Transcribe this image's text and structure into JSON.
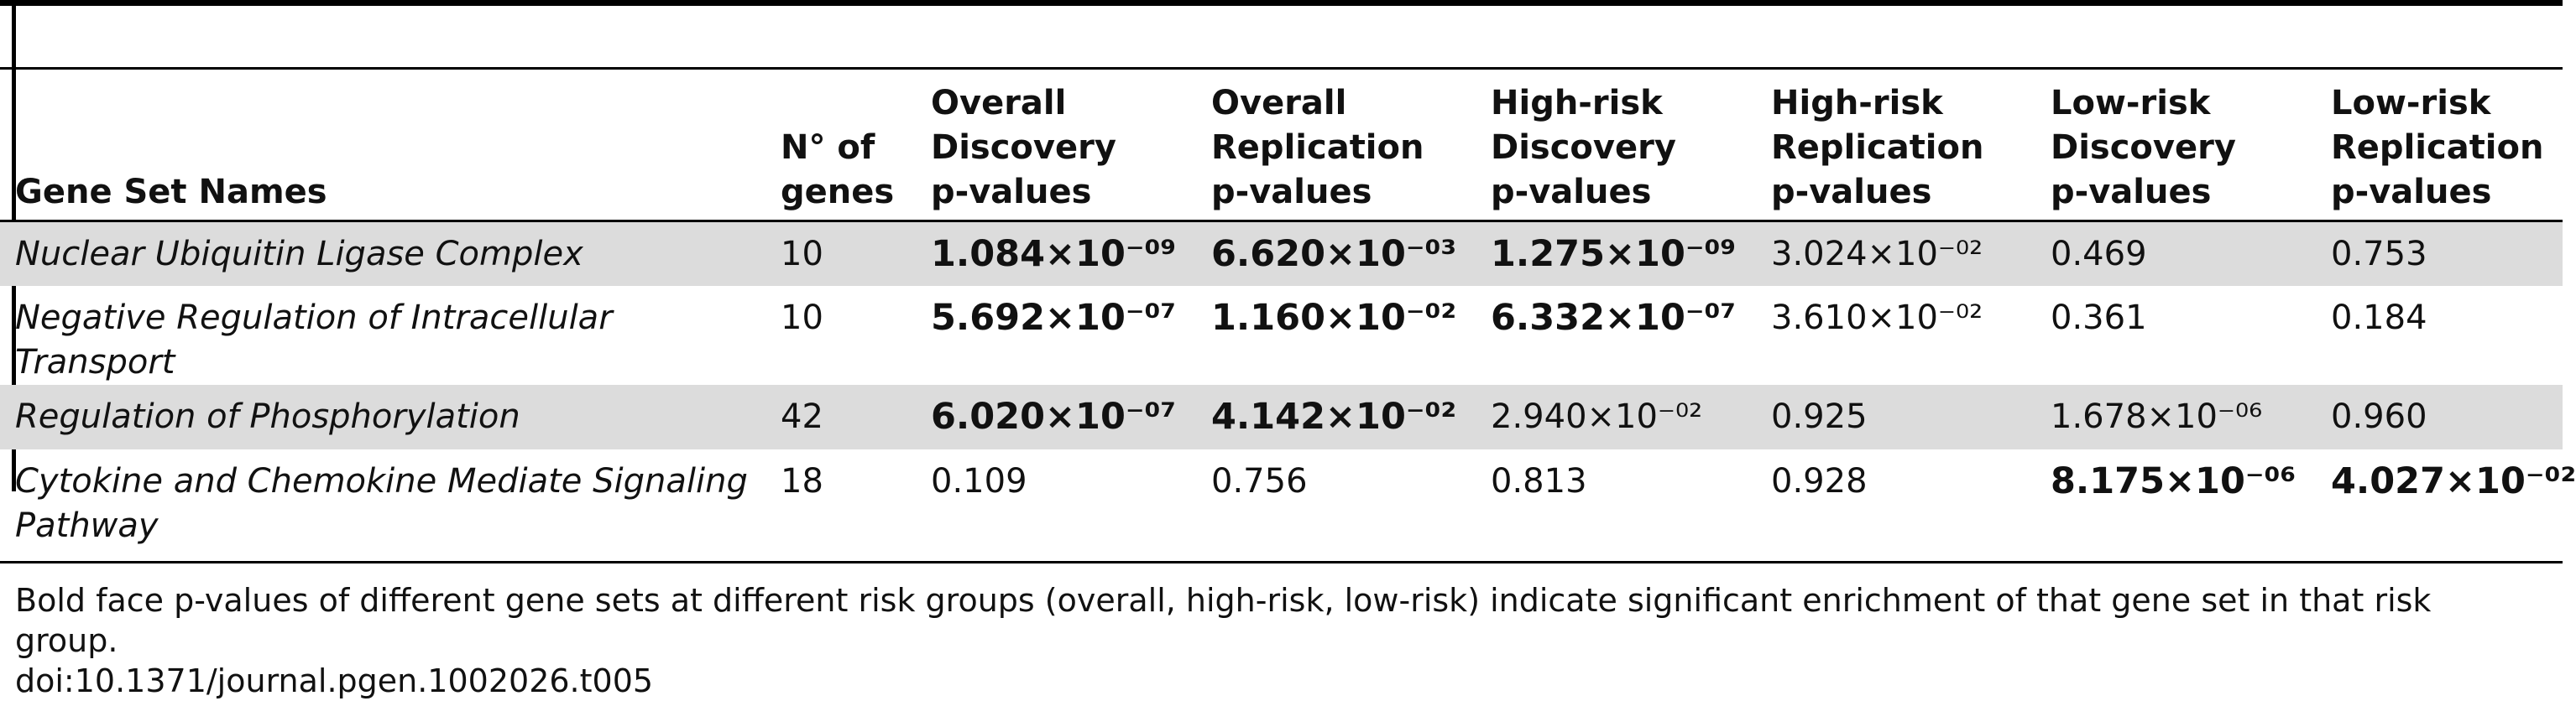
{
  "table": {
    "headers": {
      "name": "Gene Set Names",
      "n_genes": [
        "N° of",
        "genes"
      ],
      "overall_discovery": [
        "Overall",
        "Discovery",
        "p-values"
      ],
      "overall_replication": [
        "Overall",
        "Replication",
        "p-values"
      ],
      "high_discovery": [
        "High-risk",
        "Discovery",
        "p-values"
      ],
      "high_replication": [
        "High-risk",
        "Replication",
        "p-values"
      ],
      "low_discovery": [
        "Low-risk",
        "Discovery",
        "p-values"
      ],
      "low_replication": [
        "Low-risk",
        "Replication",
        "p-values"
      ]
    },
    "rows": [
      {
        "name": "Nuclear Ubiquitin Ligase Complex",
        "n_genes": "10",
        "overall_discovery": "1.084×10⁻⁰⁹",
        "overall_replication": "6.620×10⁻⁰³",
        "high_discovery": "1.275×10⁻⁰⁹",
        "high_replication": "3.024×10⁻⁰²",
        "low_discovery": "0.469",
        "low_replication": "0.753"
      },
      {
        "name": "Negative Regulation of Intracellular Transport",
        "n_genes": "10",
        "overall_discovery": "5.692×10⁻⁰⁷",
        "overall_replication": "1.160×10⁻⁰²",
        "high_discovery": "6.332×10⁻⁰⁷",
        "high_replication": "3.610×10⁻⁰²",
        "low_discovery": "0.361",
        "low_replication": "0.184"
      },
      {
        "name": "Regulation of Phosphorylation",
        "n_genes": "42",
        "overall_discovery": "6.020×10⁻⁰⁷",
        "overall_replication": "4.142×10⁻⁰²",
        "high_discovery": "2.940×10⁻⁰²",
        "high_replication": "0.925",
        "low_discovery": "1.678×10⁻⁰⁶",
        "low_replication": "0.960"
      },
      {
        "name": "Cytokine and Chemokine Mediate Signaling Pathway",
        "n_genes": "18",
        "overall_discovery": "0.109",
        "overall_replication": "0.756",
        "high_discovery": "0.813",
        "high_replication": "0.928",
        "low_discovery": "8.175×10⁻⁰⁶",
        "low_replication": "4.027×10⁻⁰²"
      }
    ]
  },
  "caption": {
    "text": "Bold face p-values of different gene sets at different risk groups (overall, high-risk, low-risk) indicate significant enrichment of that gene set in that risk group.",
    "doi": "doi:10.1371/journal.pgen.1002026.t005"
  },
  "colors": {
    "shaded_row": "#dcdcdc",
    "rule": "#000000"
  }
}
